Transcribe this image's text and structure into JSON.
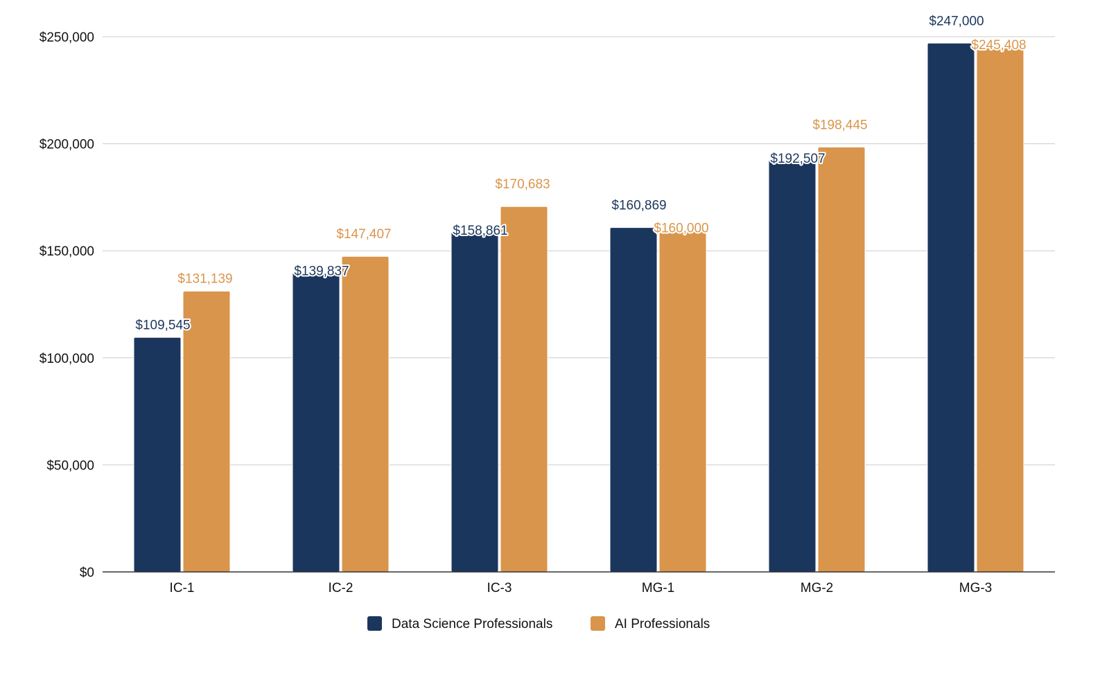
{
  "chart_data": {
    "type": "bar",
    "title": "",
    "xlabel": "",
    "ylabel": "",
    "categories": [
      "IC-1",
      "IC-2",
      "IC-3",
      "MG-1",
      "MG-2",
      "MG-3"
    ],
    "series": [
      {
        "name": "Data Science Professionals",
        "color": "#1b365d",
        "values": [
          109545,
          139837,
          158861,
          160869,
          192507,
          247000
        ],
        "labels": [
          "$109,545",
          "$139,837",
          "$158,861",
          "$160,869",
          "$192,507",
          "$247,000"
        ]
      },
      {
        "name": "AI Professionals",
        "color": "#d9954b",
        "values": [
          131139,
          147407,
          170683,
          160000,
          198445,
          245408
        ],
        "labels": [
          "$131,139",
          "$147,407",
          "$170,683",
          "$160,000",
          "$198,445",
          "$245,408"
        ]
      }
    ],
    "ylim": [
      0,
      250000
    ],
    "yticks": [
      0,
      50000,
      100000,
      150000,
      200000,
      250000
    ],
    "ytick_labels": [
      "$0",
      "$50,000",
      "$100,000",
      "$150,000",
      "$200,000",
      "$250,000"
    ],
    "grid": true,
    "legend_position": "bottom"
  }
}
